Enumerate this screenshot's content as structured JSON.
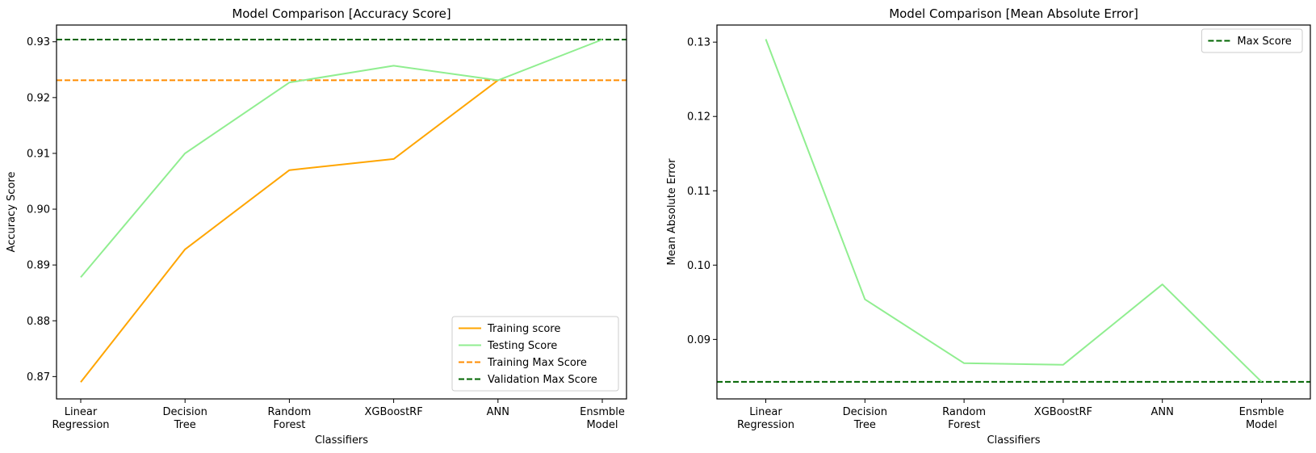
{
  "chart_data": [
    {
      "type": "line",
      "title": "Model Comparison [Accuracy Score]",
      "xlabel": "Classifiers",
      "ylabel": "Accuracy Score",
      "categories": [
        [
          "Linear",
          "Regression"
        ],
        [
          "Decision",
          "Tree"
        ],
        [
          "Random",
          "Forest"
        ],
        [
          "XGBoostRF"
        ],
        [
          "ANN"
        ],
        [
          "Ensmble",
          "Model"
        ]
      ],
      "ylim": [
        0.866,
        0.933
      ],
      "yticks": [
        0.87,
        0.88,
        0.89,
        0.9,
        0.91,
        0.92,
        0.93
      ],
      "ytick_labels": [
        "0.87",
        "0.88",
        "0.89",
        "0.90",
        "0.91",
        "0.92",
        "0.93"
      ],
      "grid": false,
      "legend_position": "lower-right",
      "series": [
        {
          "name": "Training score",
          "color": "#ffa500",
          "style": "solid",
          "values": [
            0.869,
            0.8928,
            0.907,
            0.909,
            0.9231,
            null
          ]
        },
        {
          "name": "Testing Score",
          "color": "#90ee90",
          "style": "solid",
          "values": [
            0.8878,
            0.91,
            0.9227,
            0.9257,
            0.9231,
            0.9304
          ]
        }
      ],
      "hlines": [
        {
          "name": "Training Max Score",
          "color": "#ff8c00",
          "style": "dashed",
          "value": 0.9231
        },
        {
          "name": "Validation Max Score",
          "color": "#006400",
          "style": "dashed",
          "value": 0.9304
        }
      ]
    },
    {
      "type": "line",
      "title": "Model Comparison [Mean Absolute Error]",
      "xlabel": "Classifiers",
      "ylabel": "Mean Absolute Error",
      "categories": [
        [
          "Linear",
          "Regression"
        ],
        [
          "Decision",
          "Tree"
        ],
        [
          "Random",
          "Forest"
        ],
        [
          "XGBoostRF"
        ],
        [
          "ANN"
        ],
        [
          "Ensmble",
          "Model"
        ]
      ],
      "ylim": [
        0.082,
        0.1323
      ],
      "yticks": [
        0.09,
        0.1,
        0.11,
        0.12,
        0.13
      ],
      "ytick_labels": [
        "0.09",
        "0.10",
        "0.11",
        "0.12",
        "0.13"
      ],
      "grid": false,
      "legend_position": "upper-right",
      "series": [
        {
          "name": "",
          "color": "#90ee90",
          "style": "solid",
          "values": [
            0.1304,
            0.0954,
            0.0868,
            0.0866,
            0.0974,
            0.0843
          ]
        }
      ],
      "hlines": [
        {
          "name": "Max Score",
          "color": "#006400",
          "style": "dashed",
          "value": 0.0843
        }
      ]
    }
  ]
}
